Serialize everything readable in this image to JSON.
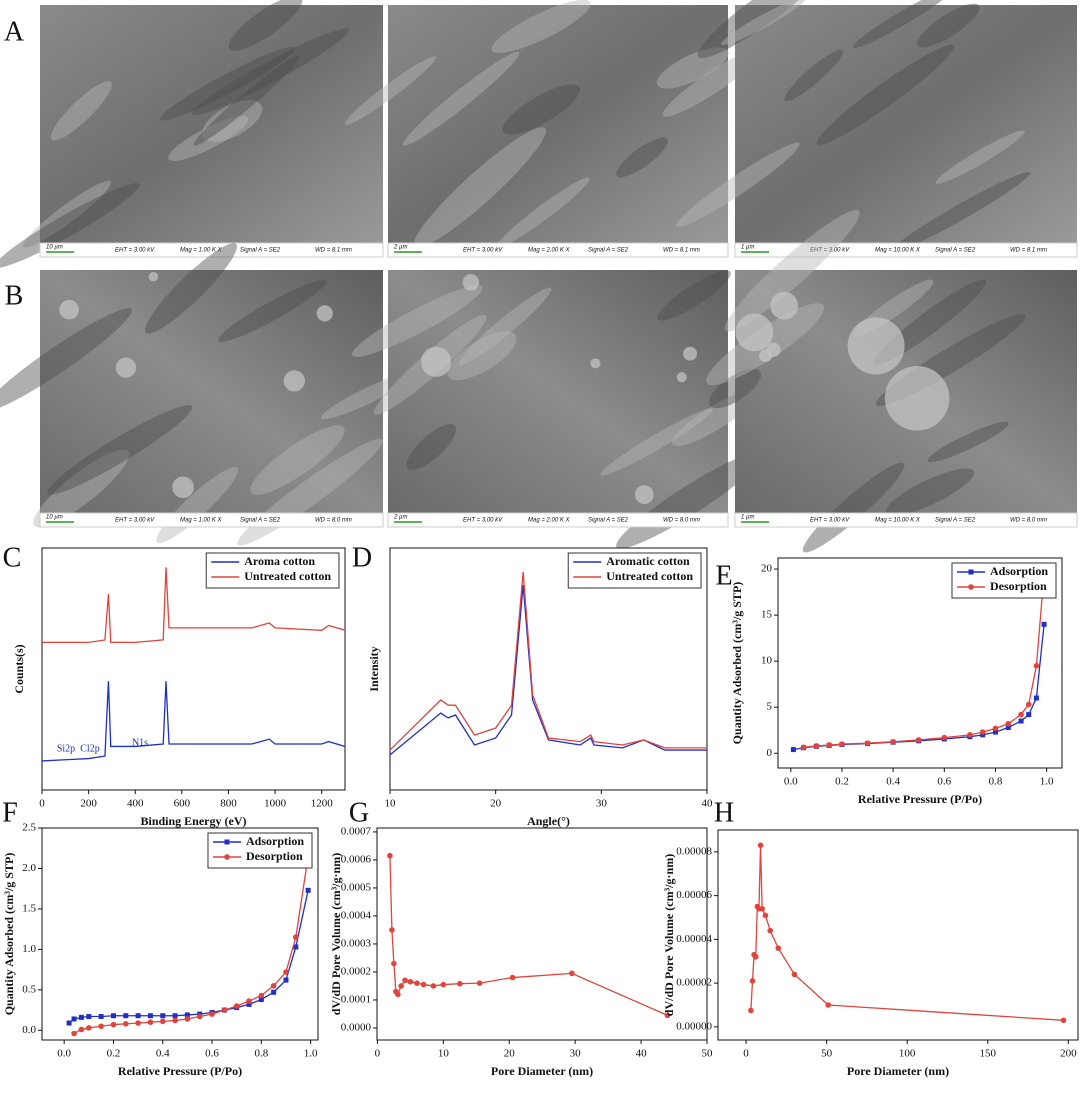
{
  "panel_labels": [
    "A",
    "B",
    "C",
    "D",
    "E",
    "F",
    "G",
    "H"
  ],
  "sem": {
    "rows": [
      [
        {
          "scale": "10 µm",
          "eht": "EHT = 3.00 kV",
          "mag": "Mag = 1.00 K X",
          "signal": "Signal A = SE2",
          "wd": "WD = 8.1 mm"
        },
        {
          "scale": "2 µm",
          "eht": "EHT = 3.00 kV",
          "mag": "Mag = 2.00 K X",
          "signal": "Signal A = SE2",
          "wd": "WD = 8.1 mm"
        },
        {
          "scale": "1 µm",
          "eht": "EHT = 3.00 kV",
          "mag": "Mag = 10.00 K X",
          "signal": "Signal A = SE2",
          "wd": "WD = 8.1 mm"
        }
      ],
      [
        {
          "scale": "10 µm",
          "eht": "EHT = 3.00 kV",
          "mag": "Mag = 1.00 K X",
          "signal": "Signal A = SE2",
          "wd": "WD = 8.0 mm"
        },
        {
          "scale": "2 µm",
          "eht": "EHT = 3.00 kV",
          "mag": "Mag = 2.00 K X",
          "signal": "Signal A = SE2",
          "wd": "WD = 8.0 mm"
        },
        {
          "scale": "1 µm",
          "eht": "EHT = 3.00 kV",
          "mag": "Mag = 10.00 K X",
          "signal": "Signal A = SE2",
          "wd": "WD = 8.0 mm"
        }
      ]
    ]
  },
  "chart_data": [
    {
      "type": "line",
      "xlabel": "Binding Energy (eV)",
      "ylabel": "Counts(s)",
      "x": [
        0,
        100,
        200,
        270,
        285,
        295,
        400,
        520,
        532,
        545,
        900,
        975,
        1000,
        1200,
        1230,
        1300
      ],
      "series": [
        {
          "name": "Aroma cotton",
          "color": "#1f2fc8",
          "values": [
            12,
            12.5,
            13,
            14,
            45,
            18,
            18,
            19,
            45,
            19,
            19,
            21,
            19,
            19,
            20,
            18
          ]
        },
        {
          "name": "Untreated cotton",
          "color": "#e0443c",
          "values": [
            61,
            61,
            61,
            62,
            81,
            61,
            61,
            62,
            92,
            67,
            67,
            69,
            67,
            66,
            68,
            66
          ]
        }
      ],
      "annotations": [
        "Si2p",
        "Cl2p",
        "N1s"
      ],
      "xlim": [
        0,
        1300
      ],
      "xticks": [
        0,
        200,
        400,
        600,
        800,
        1000,
        1200
      ],
      "ylim": [
        0,
        100
      ],
      "legend": "upper right"
    },
    {
      "type": "line",
      "xlabel": "Angle(°)",
      "ylabel": "Intensity",
      "x": [
        10,
        14.8,
        15.5,
        16.2,
        18,
        20,
        21.5,
        22.6,
        23.5,
        25,
        28,
        29,
        29.3,
        32,
        34,
        36,
        40
      ],
      "series": [
        {
          "name": "Aromatic cotton",
          "color": "#1f2fc8",
          "values": [
            14.5,
            31.8,
            29.8,
            31,
            18.6,
            21.5,
            31,
            84.7,
            37.2,
            20.7,
            18.6,
            21.5,
            18.6,
            17.4,
            20.7,
            16.5,
            16.5
          ]
        },
        {
          "name": "Untreated cotton",
          "color": "#e0443c",
          "values": [
            16.5,
            37.2,
            35.1,
            35,
            22.7,
            25.6,
            35,
            90.1,
            39.3,
            21.5,
            20,
            22.7,
            20,
            18.6,
            20.7,
            17.4,
            17.4
          ]
        }
      ],
      "xlim": [
        10,
        40
      ],
      "xticks": [
        10,
        20,
        30,
        40
      ],
      "ylim": [
        0,
        100
      ],
      "legend": "upper right"
    },
    {
      "type": "line",
      "xlabel": "Relative Pressure (P/Po)",
      "ylabel": "Quantity Adsorbed (cm³/g STP)",
      "x": [
        0.01,
        0.05,
        0.1,
        0.15,
        0.2,
        0.3,
        0.4,
        0.5,
        0.6,
        0.7,
        0.75,
        0.8,
        0.85,
        0.9,
        0.93,
        0.96,
        0.99
      ],
      "series": [
        {
          "name": "Adsorption",
          "color": "#1f2fc8",
          "marker": "square",
          "values": [
            0.4,
            0.6,
            0.75,
            0.85,
            0.95,
            1.05,
            1.2,
            1.35,
            1.55,
            1.8,
            2.0,
            2.3,
            2.8,
            3.5,
            4.2,
            6.0,
            14.0
          ]
        },
        {
          "name": "Desorption",
          "color": "#e0443c",
          "marker": "circle",
          "values": [
            null,
            0.65,
            0.8,
            0.9,
            1.0,
            1.1,
            1.25,
            1.45,
            1.7,
            2.0,
            2.3,
            2.7,
            3.2,
            4.2,
            5.3,
            9.5,
            19.5
          ]
        }
      ],
      "xlim": [
        -0.05,
        1.06
      ],
      "xticks": [
        {
          "value": 0,
          "label": "0.0"
        },
        0.2,
        0.4,
        0.6,
        0.8,
        {
          "value": 1,
          "label": "1.0"
        }
      ],
      "ylim": [
        -1.6,
        21.2
      ],
      "yticks": [
        0,
        5,
        10,
        15,
        20
      ],
      "legend": "upper right"
    },
    {
      "type": "line",
      "xlabel": "Relative Pressure (P/Po)",
      "ylabel": "Quantity Adsorbed (cm³/g STP)",
      "x": [
        0.02,
        0.04,
        0.07,
        0.1,
        0.15,
        0.2,
        0.25,
        0.3,
        0.35,
        0.4,
        0.45,
        0.5,
        0.55,
        0.6,
        0.65,
        0.7,
        0.75,
        0.8,
        0.85,
        0.9,
        0.94,
        0.99
      ],
      "series": [
        {
          "name": "Adsorption",
          "color": "#1f2fc8",
          "marker": "square",
          "values": [
            0.09,
            0.14,
            0.16,
            0.17,
            0.17,
            0.18,
            0.18,
            0.18,
            0.18,
            0.18,
            0.18,
            0.19,
            0.2,
            0.22,
            0.25,
            0.28,
            0.32,
            0.38,
            0.47,
            0.62,
            1.03,
            1.73
          ]
        },
        {
          "name": "Desorption",
          "color": "#e0443c",
          "marker": "circle",
          "values": [
            null,
            -0.04,
            0.01,
            0.03,
            0.05,
            0.07,
            0.08,
            0.09,
            0.1,
            0.11,
            0.12,
            0.14,
            0.17,
            0.2,
            0.25,
            0.3,
            0.36,
            0.43,
            0.55,
            0.72,
            1.15,
            2.15
          ]
        }
      ],
      "xlim": [
        -0.09,
        1.03
      ],
      "xticks": [
        {
          "value": 0,
          "label": "0.0"
        },
        0.2,
        0.4,
        0.6,
        0.8,
        {
          "value": 1,
          "label": "1.0"
        }
      ],
      "ylim": [
        -0.12,
        2.5
      ],
      "yticks": [
        {
          "value": 0,
          "label": "0.0"
        },
        0.5,
        {
          "value": 1,
          "label": "1.0"
        },
        1.5,
        {
          "value": 2,
          "label": "2.0"
        },
        2.5
      ],
      "legend": "upper right"
    },
    {
      "type": "line",
      "xlabel": "Pore Diameter (nm)",
      "ylabel": "dV/dD Pore Volume (cm³/g·nm)",
      "x": [
        1.9,
        2.2,
        2.5,
        2.8,
        3.1,
        3.6,
        4.2,
        5,
        6,
        7,
        8.5,
        10,
        12.5,
        15.5,
        20.5,
        29.5,
        44
      ],
      "series": [
        {
          "name": "Pore volume",
          "color": "#e0443c",
          "marker": "circle",
          "values": [
            0.000615,
            0.00035,
            0.00023,
            0.00013,
            0.00012,
            0.00015,
            0.00017,
            0.000165,
            0.00016,
            0.000155,
            0.00015,
            0.000155,
            0.000158,
            0.00016,
            0.00018,
            0.000195,
            4.5e-05
          ]
        }
      ],
      "xlim": [
        -0.06,
        50
      ],
      "xticks": [
        0,
        10,
        20,
        30,
        40,
        50
      ],
      "ylim": [
        -4.3e-05,
        0.000714
      ],
      "yticks": [
        {
          "value": 0,
          "label": "0.0000"
        },
        {
          "value": 0.0001,
          "label": "0.0001"
        },
        {
          "value": 0.0002,
          "label": "0.0002"
        },
        {
          "value": 0.0003,
          "label": "0.0003"
        },
        {
          "value": 0.0004,
          "label": "0.0004"
        },
        {
          "value": 0.0005,
          "label": "0.0005"
        },
        {
          "value": 0.0006,
          "label": "0.0006"
        },
        {
          "value": 0.0007,
          "label": "0.0007"
        }
      ]
    },
    {
      "type": "line",
      "xlabel": "Pore Diameter (nm)",
      "ylabel": "dV/dD Pore Volume (cm³/g·nm)",
      "x": [
        3,
        4,
        5,
        6,
        7,
        8,
        9,
        10,
        12,
        15,
        20,
        30,
        51,
        197
      ],
      "series": [
        {
          "name": "Pore volume",
          "color": "#e0443c",
          "marker": "circle",
          "values": [
            7.5e-06,
            2.1e-05,
            3.3e-05,
            3.2e-05,
            5.5e-05,
            5.4e-05,
            8.3e-05,
            5.4e-05,
            5.1e-05,
            4.4e-05,
            3.6e-05,
            2.4e-05,
            1e-05,
            3e-06
          ]
        }
      ],
      "xlim": [
        -17.4,
        206
      ],
      "xticks": [
        0,
        50,
        100,
        150,
        200
      ],
      "ylim": [
        -6e-06,
        9e-05
      ],
      "yticks": [
        {
          "value": 0,
          "label": "0.00000"
        },
        {
          "value": 2e-05,
          "label": "0.00002"
        },
        {
          "value": 4e-05,
          "label": "0.00004"
        },
        {
          "value": 6e-05,
          "label": "0.00006"
        },
        {
          "value": 8e-05,
          "label": "0.00008"
        }
      ]
    }
  ]
}
